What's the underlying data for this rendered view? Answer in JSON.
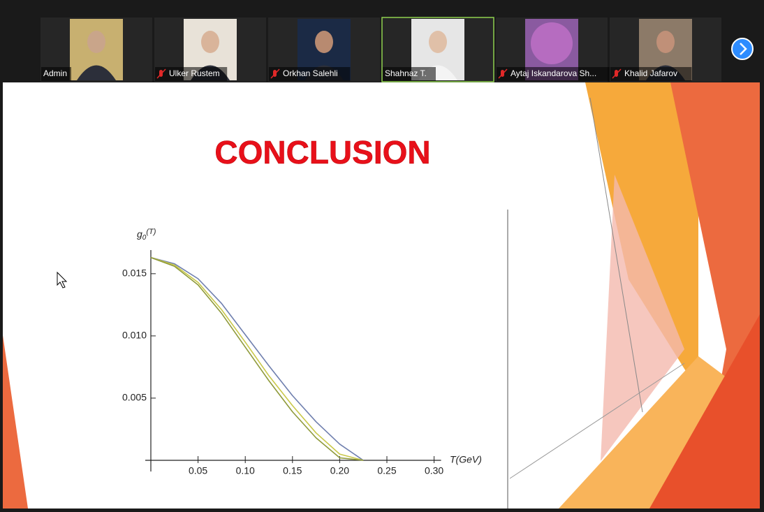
{
  "participants": [
    {
      "name": "Admin",
      "muted": false
    },
    {
      "name": "Ulker Rustem",
      "muted": true
    },
    {
      "name": "Orkhan Salehli",
      "muted": true
    },
    {
      "name": "Shahnaz T.",
      "muted": false,
      "active": true
    },
    {
      "name": "Aytaj Iskandarova Sh...",
      "muted": true
    },
    {
      "name": "Khalid Jafarov",
      "muted": true
    }
  ],
  "slide": {
    "title": "CONCLUSION"
  },
  "chart_data": {
    "type": "line",
    "y_label": {
      "symbol": "g",
      "sub": "0",
      "arg": "(T)"
    },
    "x_label": "T(GeV)",
    "x": [
      0,
      0.025,
      0.05,
      0.075,
      0.1,
      0.125,
      0.15,
      0.175,
      0.2,
      0.225
    ],
    "series": [
      {
        "color": "#6f7fae",
        "values": [
          0.0163,
          0.0158,
          0.0146,
          0.0126,
          0.0101,
          0.0076,
          0.0052,
          0.0031,
          0.0013,
          0
        ]
      },
      {
        "color": "#c9c84a",
        "values": [
          0.0163,
          0.0157,
          0.0143,
          0.0121,
          0.0095,
          0.0068,
          0.0044,
          0.0022,
          0.0005,
          0
        ]
      },
      {
        "color": "#8f9a3a",
        "values": [
          0.0163,
          0.0156,
          0.0141,
          0.0118,
          0.0091,
          0.0064,
          0.0039,
          0.0018,
          0.0002,
          0
        ]
      }
    ],
    "xlim": [
      0,
      0.3
    ],
    "ylim": [
      0,
      0.0169
    ],
    "xticks": [
      0.05,
      {
        "value": 0.1,
        "label": "0.10"
      },
      0.15,
      {
        "value": 0.2,
        "label": "0.20"
      },
      0.25,
      {
        "value": 0.3,
        "label": "0.30"
      }
    ],
    "yticks": [
      0.005,
      {
        "value": 0.01,
        "label": "0.010"
      },
      0.015
    ]
  }
}
